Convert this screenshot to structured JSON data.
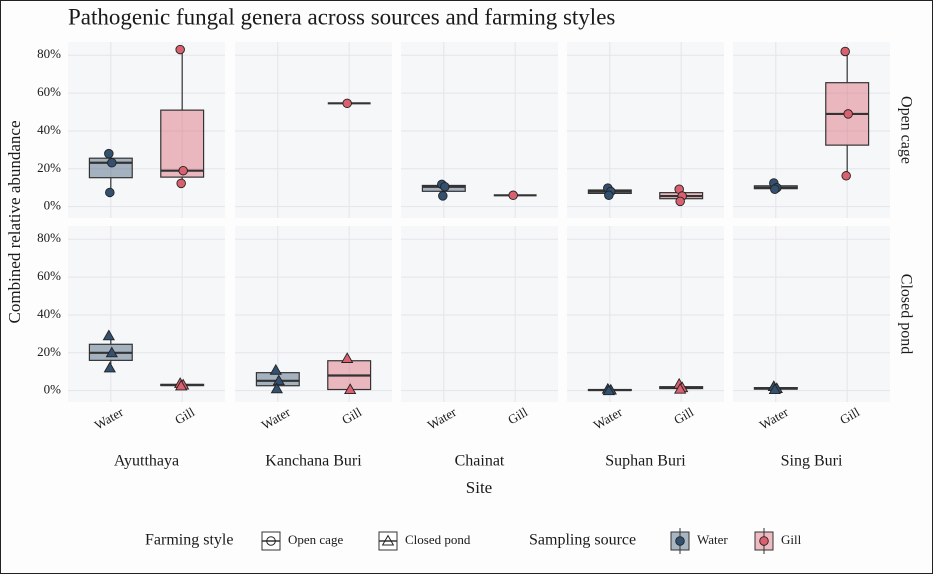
{
  "chart_data": {
    "type": "box",
    "title": "Pathogenic fungal genera across sources and farming styles",
    "x_label": "Site",
    "y_label": "Combined relative abundance",
    "columns": [
      "Ayutthaya",
      "Kanchana Buri",
      "Chainat",
      "Suphan Buri",
      "Sing Buri"
    ],
    "categories": [
      "Water",
      "Gill"
    ],
    "farming_style": {
      "title": "Farming style",
      "levels": [
        "Open cage",
        "Closed pond"
      ],
      "shapes": [
        "circle",
        "triangle"
      ]
    },
    "sampling_source": {
      "title": "Sampling source"
    },
    "series": [
      {
        "name": "Water",
        "color": "#33506f"
      },
      {
        "name": "Gill",
        "color": "#d9606f"
      }
    ],
    "ylim": [
      -6,
      87
    ],
    "yticks": [
      {
        "value": 0,
        "label": "0%"
      },
      {
        "value": 20,
        "label": "20%"
      },
      {
        "value": 40,
        "label": "40%"
      },
      {
        "value": 60,
        "label": "60%"
      },
      {
        "value": 80,
        "label": "80%"
      }
    ],
    "grid": true,
    "panels": [
      [
        [
          {
            "stats": [
              7.5,
              15.3,
              23.2,
              25.6,
              28
            ],
            "points": [
              28,
              23.2,
              7.5
            ]
          },
          {
            "stats": [
              12.3,
              15.6,
              19,
              51,
              83
            ],
            "points": [
              83,
              19,
              12.3
            ]
          }
        ],
        [
          null,
          {
            "stats": [
              54.6,
              54.6,
              54.6,
              54.6,
              54.6
            ],
            "points": [
              54.6
            ]
          }
        ],
        [
          {
            "stats": [
              5.7,
              8.1,
              10.5,
              11.2,
              11.8
            ],
            "points": [
              11.8,
              10.5,
              5.7
            ]
          },
          {
            "stats": [
              6,
              6,
              6,
              6,
              6
            ],
            "points": [
              6
            ]
          }
        ],
        [
          {
            "stats": [
              6,
              7,
              8,
              8.8,
              9.8
            ],
            "points": [
              9.8,
              8,
              6
            ]
          },
          {
            "stats": [
              2.8,
              4.2,
              5.6,
              7.4,
              9.2
            ],
            "points": [
              9.2,
              5.6,
              2.8
            ]
          }
        ],
        [
          {
            "stats": [
              9.2,
              9.5,
              10,
              11,
              12.5
            ],
            "points": [
              12.5,
              10,
              9.2
            ]
          },
          {
            "stats": [
              16.3,
              32.5,
              49,
              65.5,
              82
            ],
            "points": [
              82,
              49,
              16.3
            ]
          }
        ]
      ],
      [
        [
          {
            "stats": [
              12,
              16,
              20,
              24.5,
              29
            ],
            "points": [
              29,
              20,
              12
            ]
          },
          {
            "stats": [
              2.5,
              2.7,
              3,
              3.3,
              3.8
            ],
            "points": [
              3.8,
              3,
              2.5
            ]
          }
        ],
        [
          {
            "stats": [
              1,
              2.6,
              5.2,
              9.5,
              10.8
            ],
            "points": [
              10.8,
              5.2,
              1
            ]
          },
          {
            "stats": [
              0.6,
              0.6,
              8,
              15.8,
              17
            ],
            "points": [
              17,
              0.6
            ]
          }
        ],
        [
          null,
          null
        ],
        [
          {
            "stats": [
              0,
              0.1,
              0.3,
              0.6,
              0.8
            ],
            "points": [
              0.8,
              0.3,
              0
            ]
          },
          {
            "stats": [
              0.8,
              1.1,
              1.6,
              2.1,
              3.4
            ],
            "points": [
              3.4,
              1.6,
              0.8
            ]
          }
        ],
        [
          {
            "stats": [
              0.6,
              0.8,
              1.1,
              1.6,
              2.2
            ],
            "points": [
              2.2,
              1.1,
              0.6
            ]
          },
          null
        ]
      ]
    ]
  }
}
